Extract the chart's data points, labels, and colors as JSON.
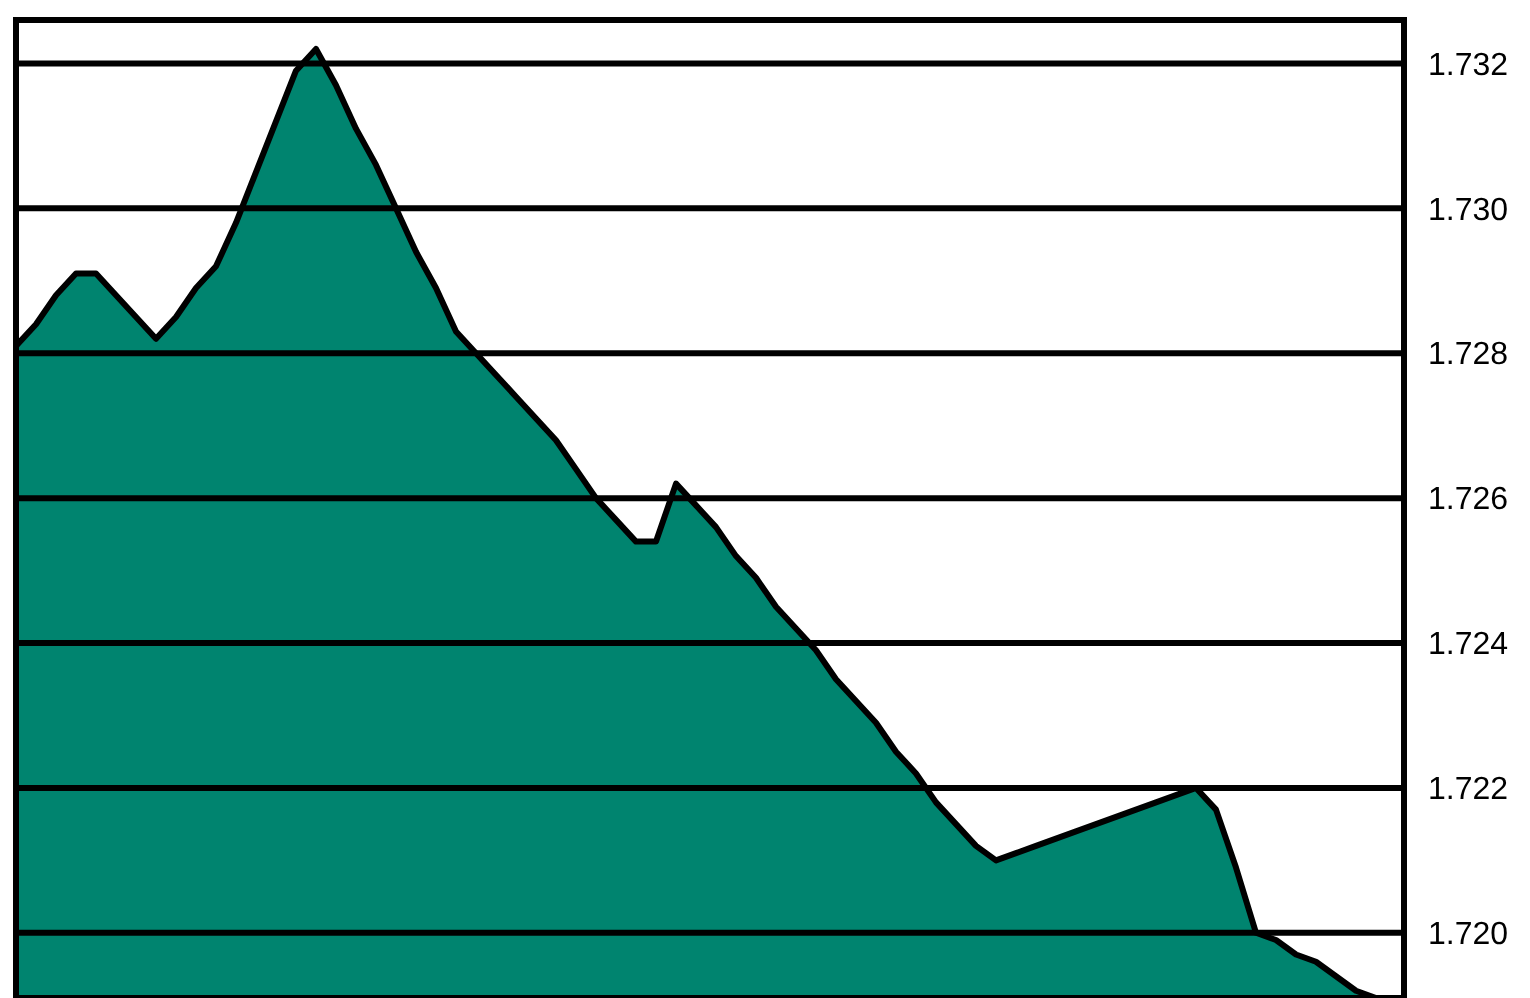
{
  "chart_data": {
    "type": "area",
    "categories": [
      null,
      null,
      null,
      null,
      null,
      null,
      null,
      null,
      null,
      null,
      null,
      null,
      null,
      null,
      null,
      null,
      null,
      null,
      null,
      null,
      null,
      null,
      null,
      null,
      null,
      null,
      null,
      null,
      null,
      null,
      null,
      null,
      null,
      null,
      null,
      null,
      null,
      null,
      null,
      null,
      null,
      null,
      null,
      null,
      null,
      null,
      null,
      null,
      null,
      null,
      null,
      null,
      null,
      null,
      null,
      null,
      null,
      null,
      null,
      null,
      null,
      null,
      null,
      null,
      null,
      null,
      null,
      null,
      null
    ],
    "series": [
      {
        "color": "#00846f",
        "values": [
          1.7281,
          1.7284,
          1.7288,
          1.7291,
          1.7291,
          1.7288,
          1.7285,
          1.7282,
          1.7285,
          1.7289,
          1.7292,
          1.7298,
          1.7305,
          1.7312,
          1.7319,
          1.7322,
          1.7317,
          1.7311,
          1.7306,
          1.73,
          1.7294,
          1.7289,
          1.7283,
          1.728,
          1.7277,
          1.7274,
          1.7271,
          1.7268,
          1.7264,
          1.726,
          1.7257,
          1.7254,
          1.7254,
          1.7262,
          1.7259,
          1.7256,
          1.7252,
          1.7249,
          1.7245,
          1.7242,
          1.7239,
          1.7235,
          1.7232,
          1.7229,
          1.7225,
          1.7222,
          1.7218,
          1.7215,
          1.7212,
          1.721,
          1.7211,
          1.7212,
          1.7213,
          1.7214,
          1.7215,
          1.7216,
          1.7217,
          1.7218,
          1.7219,
          1.722,
          1.7217,
          1.7209,
          1.72,
          1.7199,
          1.7197,
          1.7196,
          1.7194,
          1.7192,
          1.7191
        ]
      }
    ],
    "ylim": [
      1.7191,
      1.7326
    ],
    "yticks": [
      {
        "value": 1.72,
        "label": "1.720"
      },
      1.722,
      1.724,
      1.726,
      1.728,
      {
        "value": 1.73,
        "label": "1.730"
      },
      1.732
    ],
    "grid": "y",
    "tick_labels": "y"
  }
}
